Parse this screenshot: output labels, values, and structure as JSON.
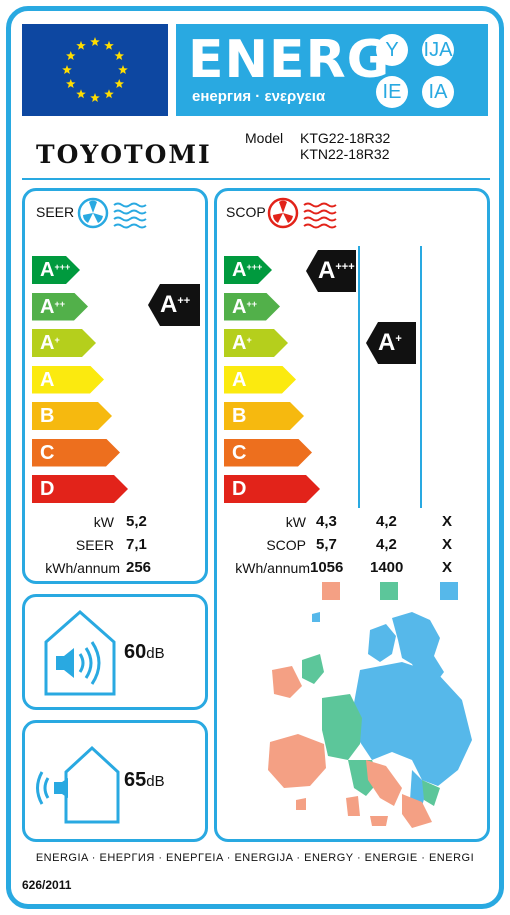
{
  "header": {
    "energ_word": "ENERG",
    "energ_subtitle": "енергия · ενεργεια",
    "language_badges": [
      "Y",
      "IJA",
      "IE",
      "IA"
    ]
  },
  "supplier": {
    "logo_text": "TOYOTOMI",
    "model_label": "Model",
    "model_codes": [
      "KTG22-18R32",
      "KTN22-18R32"
    ]
  },
  "energy_scale": [
    {
      "label": "A",
      "suffix": "+++",
      "color": "#009a3e"
    },
    {
      "label": "A",
      "suffix": "++",
      "color": "#52b04a"
    },
    {
      "label": "A",
      "suffix": "+",
      "color": "#b5cf1c"
    },
    {
      "label": "A",
      "suffix": "",
      "color": "#fbea0f"
    },
    {
      "label": "B",
      "suffix": "",
      "color": "#f6b90f"
    },
    {
      "label": "C",
      "suffix": "",
      "color": "#ed6f1e"
    },
    {
      "label": "D",
      "suffix": "",
      "color": "#e2231a"
    }
  ],
  "cooling": {
    "title": "SEER",
    "icon": "fan-cooling-icon",
    "icon_color": "#29a9e1",
    "class_label": "A",
    "class_suffix": "++",
    "rows": [
      {
        "label": "kW",
        "value": "5,2"
      },
      {
        "label": "SEER",
        "value": "7,1"
      },
      {
        "label": "kWh/annum",
        "value": "256"
      }
    ]
  },
  "heating": {
    "title": "SCOP",
    "icon": "fan-heating-icon",
    "icon_color": "#e2231a",
    "warm_class_label": "A",
    "warm_class_suffix": "+++",
    "average_class_label": "A",
    "average_class_suffix": "+",
    "row_labels": [
      "kW",
      "SCOP",
      "kWh/annum"
    ],
    "columns": [
      {
        "zone": "warmer",
        "color": "#f4a084",
        "values": [
          "4,3",
          "5,7",
          "1056"
        ]
      },
      {
        "zone": "average",
        "color": "#5cc69a",
        "values": [
          "4,2",
          "4,2",
          "1400"
        ]
      },
      {
        "zone": "colder",
        "color": "#56b8ea",
        "values": [
          "X",
          "X",
          "X"
        ]
      }
    ]
  },
  "noise": {
    "indoor_value": "60",
    "outdoor_value": "65",
    "unit": "dB"
  },
  "footer": {
    "languages": "ENERGIA · ЕНЕРГИЯ · ΕΝΕΡΓΕΙΑ · ENERGIJA · ENERGY · ENERGIE · ENERGI",
    "regulation": "626/2011"
  }
}
